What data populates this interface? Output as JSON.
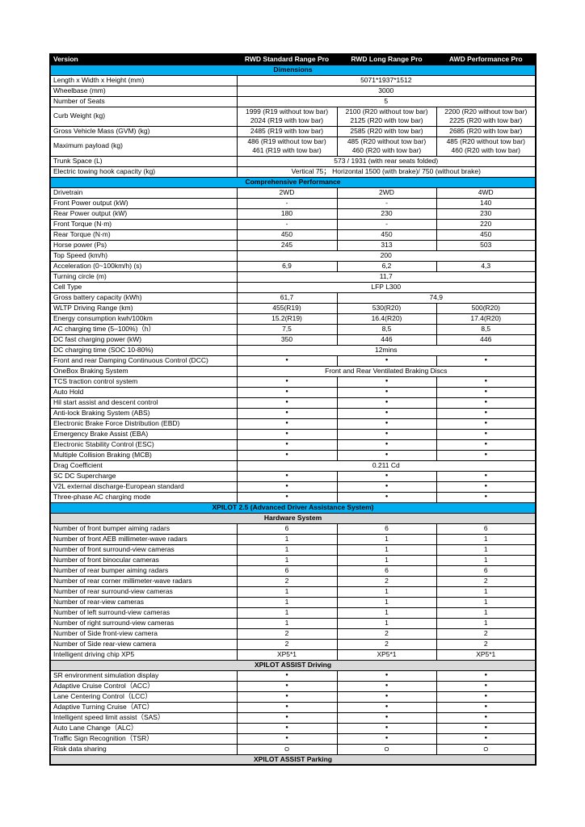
{
  "table": {
    "header": {
      "version": "Version",
      "columns": [
        "RWD Standard Range Pro",
        "RWD Long Range Pro",
        "AWD Performance Pro"
      ]
    },
    "symbols": {
      "included": "●",
      "optional": "O"
    },
    "colors": {
      "header_bg": "#000000",
      "header_text": "#FFFFFF",
      "section_blue": "#00AEEF",
      "section_gray": "#D9D9D9"
    },
    "rows": [
      {
        "t": "sec",
        "style": "blue",
        "label": "Dimensions"
      },
      {
        "t": "row",
        "label": "Length x Width x Height (mm)",
        "span": "all",
        "values": [
          "5071*1937*1512"
        ]
      },
      {
        "t": "row",
        "label": "Wheelbase (mm)",
        "span": "all",
        "values": [
          "3000"
        ]
      },
      {
        "t": "row",
        "label": "Number of Seats",
        "span": "all",
        "values": [
          "5"
        ]
      },
      {
        "t": "row",
        "label": "Curb Weight (kg)",
        "span": "each",
        "values": [
          [
            "1999 (R19 without tow bar)",
            "2024 (R19 with tow bar)"
          ],
          [
            "2100 (R20 without tow bar)",
            "2125 (R20 with tow bar)"
          ],
          [
            "2200 (R20 without tow bar)",
            "2225 (R20 with tow bar)"
          ]
        ]
      },
      {
        "t": "row",
        "label": "Gross Vehicle Mass (GVM) (kg)",
        "span": "each",
        "values": [
          "2485 (R19 with tow bar)",
          "2585 (R20 with tow bar)",
          "2685 (R20 with tow bar)"
        ]
      },
      {
        "t": "row",
        "label": "Maximum payload (kg)",
        "span": "each",
        "values": [
          [
            "486 (R19 without tow bar)",
            "461 (R19 with tow bar)"
          ],
          [
            "485 (R20 without tow bar)",
            "460 (R20 with tow bar)"
          ],
          [
            "485 (R20 without tow bar)",
            "460 (R20 with tow bar)"
          ]
        ]
      },
      {
        "t": "row",
        "label": "Trunk Space (L)",
        "span": "all",
        "values": [
          "573 / 1931 (with rear seats folded)"
        ]
      },
      {
        "t": "row",
        "label": "Electric towing hook capacity (kg)",
        "span": "all",
        "values": [
          "Vertical 75；  Horizontal 1500 (with brake)/ 750 (without brake)"
        ]
      },
      {
        "t": "sec",
        "style": "blue",
        "label": "Comprehensive Performance"
      },
      {
        "t": "row",
        "label": "Drivetrain",
        "span": "each",
        "values": [
          "2WD",
          "2WD",
          "4WD"
        ]
      },
      {
        "t": "row",
        "label": "Front Power output (kW)",
        "span": "each",
        "values": [
          "-",
          "-",
          "140"
        ]
      },
      {
        "t": "row",
        "label": "Rear Power output (kW)",
        "span": "each",
        "values": [
          "180",
          "230",
          "230"
        ]
      },
      {
        "t": "row",
        "label": "Front Torque (N·m)",
        "span": "each",
        "values": [
          "-",
          "-",
          "220"
        ]
      },
      {
        "t": "row",
        "label": "Rear Torque (N·m)",
        "span": "each",
        "values": [
          "450",
          "450",
          "450"
        ]
      },
      {
        "t": "row",
        "label": "Horse power (Ps)",
        "span": "each",
        "values": [
          "245",
          "313",
          "503"
        ]
      },
      {
        "t": "row",
        "label": "Top Speed (km/h)",
        "span": "all",
        "values": [
          "200"
        ]
      },
      {
        "t": "row",
        "label": "Acceleration (0~100km/h) (s)",
        "span": "each",
        "values": [
          "6,9",
          "6,2",
          "4,3"
        ]
      },
      {
        "t": "row",
        "label": "Turning circle (m)",
        "span": "all",
        "values": [
          "11,7"
        ]
      },
      {
        "t": "row",
        "label": "Cell Type",
        "span": "all",
        "values": [
          "LFP L300"
        ]
      },
      {
        "t": "row",
        "label": "Gross battery capacity (kWh)",
        "span": "1+2",
        "values": [
          "61,7",
          "74,9"
        ]
      },
      {
        "t": "row",
        "label": "WLTP Driving Range (km)",
        "span": "each",
        "values": [
          "455(R19)",
          "530(R20)",
          "500(R20)"
        ]
      },
      {
        "t": "row",
        "label": "Energy consumption kwh/100km",
        "span": "each",
        "values": [
          "15.2(R19)",
          "16.4(R20)",
          "17.4(R20)"
        ]
      },
      {
        "t": "row",
        "label": "AC charging time (5–100%)（h）",
        "span": "each",
        "values": [
          "7,5",
          "8,5",
          "8,5"
        ]
      },
      {
        "t": "row",
        "label": "DC fast charging power (kW)",
        "span": "each",
        "values": [
          "350",
          "446",
          "446"
        ]
      },
      {
        "t": "row",
        "label": "DC charging time (SOC 10-80%)",
        "span": "all",
        "values": [
          "12mins"
        ]
      },
      {
        "t": "row",
        "label": "Front and rear Damping Continuous Control (DCC)",
        "span": "each",
        "values": [
          "●",
          "●",
          "●"
        ]
      },
      {
        "t": "row",
        "label": "OneBox Braking System",
        "span": "all",
        "values": [
          "Front and Rear Ventilated Braking Discs"
        ]
      },
      {
        "t": "row",
        "label": "TCS traction control system",
        "span": "each",
        "values": [
          "●",
          "●",
          "●"
        ]
      },
      {
        "t": "row",
        "label": "Auto Hold",
        "span": "each",
        "values": [
          "●",
          "●",
          "●"
        ]
      },
      {
        "t": "row",
        "label": "Hil start assist and descent control",
        "span": "each",
        "values": [
          "●",
          "●",
          "●"
        ]
      },
      {
        "t": "row",
        "label": "Anti-lock Braking System (ABS)",
        "span": "each",
        "values": [
          "●",
          "●",
          "●"
        ]
      },
      {
        "t": "row",
        "label": "Electronic Brake Force Distribution (EBD)",
        "span": "each",
        "values": [
          "●",
          "●",
          "●"
        ]
      },
      {
        "t": "row",
        "label": "Emergency Brake Assist (EBA)",
        "span": "each",
        "values": [
          "●",
          "●",
          "●"
        ]
      },
      {
        "t": "row",
        "label": "Electronic Stability Control (ESC)",
        "span": "each",
        "values": [
          "●",
          "●",
          "●"
        ]
      },
      {
        "t": "row",
        "label": "Multiple Collision Braking (MCB)",
        "span": "each",
        "values": [
          "●",
          "●",
          "●"
        ]
      },
      {
        "t": "row",
        "label": "Drag Coefficient",
        "span": "all",
        "values": [
          "0.211 Cd"
        ]
      },
      {
        "t": "row",
        "label": "SC DC Supercharge",
        "span": "each",
        "values": [
          "●",
          "●",
          "●"
        ]
      },
      {
        "t": "row",
        "label": "V2L external discharge-European standard",
        "span": "each",
        "values": [
          "●",
          "●",
          "●"
        ]
      },
      {
        "t": "row",
        "label": "Three-phase AC charging mode",
        "span": "each",
        "values": [
          "●",
          "●",
          "●"
        ]
      },
      {
        "t": "sec",
        "style": "blue",
        "label": "XPILOT 2.5 (Advanced Driver Assistance System)"
      },
      {
        "t": "sec",
        "style": "gray",
        "label": "Hardware System"
      },
      {
        "t": "row",
        "label": "Number of front bumper aiming radars",
        "span": "each",
        "values": [
          "6",
          "6",
          "6"
        ]
      },
      {
        "t": "row",
        "label": "Number of front AEB millimeter-wave radars",
        "span": "each",
        "values": [
          "1",
          "1",
          "1"
        ]
      },
      {
        "t": "row",
        "label": "Number of front surround-view cameras",
        "span": "each",
        "values": [
          "1",
          "1",
          "1"
        ]
      },
      {
        "t": "row",
        "label": "Number of front binocular cameras",
        "span": "each",
        "values": [
          "1",
          "1",
          "1"
        ]
      },
      {
        "t": "row",
        "label": "Number of rear bumper aiming radars",
        "span": "each",
        "values": [
          "6",
          "6",
          "6"
        ]
      },
      {
        "t": "row",
        "label": "Number of rear corner millimeter-wave radars",
        "span": "each",
        "values": [
          "2",
          "2",
          "2"
        ]
      },
      {
        "t": "row",
        "label": "Number of rear surround-view cameras",
        "span": "each",
        "values": [
          "1",
          "1",
          "1"
        ]
      },
      {
        "t": "row",
        "label": "Number of rear-view cameras",
        "span": "each",
        "values": [
          "1",
          "1",
          "1"
        ]
      },
      {
        "t": "row",
        "label": "Number of left surround-view cameras",
        "span": "each",
        "values": [
          "1",
          "1",
          "1"
        ]
      },
      {
        "t": "row",
        "label": "Number of right surround-view cameras",
        "span": "each",
        "values": [
          "1",
          "1",
          "1"
        ]
      },
      {
        "t": "row",
        "label": "Number of Side front-view camera",
        "span": "each",
        "values": [
          "2",
          "2",
          "2"
        ]
      },
      {
        "t": "row",
        "label": "Number of Side rear-view camera",
        "span": "each",
        "values": [
          "2",
          "2",
          "2"
        ]
      },
      {
        "t": "row",
        "label": "Intelligent driving chip XP5",
        "span": "each",
        "values": [
          "XP5*1",
          "XP5*1",
          "XP5*1"
        ]
      },
      {
        "t": "sec",
        "style": "gray",
        "label": "XPILOT ASSIST Driving"
      },
      {
        "t": "row",
        "label": "SR environment simulation display",
        "span": "each",
        "values": [
          "●",
          "●",
          "●"
        ]
      },
      {
        "t": "row",
        "label": "Adaptive Cruise Control（ACC）",
        "span": "each",
        "values": [
          "●",
          "●",
          "●"
        ]
      },
      {
        "t": "row",
        "label": "Lane Centering Control（LCC）",
        "span": "each",
        "values": [
          "●",
          "●",
          "●"
        ]
      },
      {
        "t": "row",
        "label": "Adaptive Turning Cruise（ATC）",
        "span": "each",
        "values": [
          "●",
          "●",
          "●"
        ]
      },
      {
        "t": "row",
        "label": "Intelligent speed limit assist（SAS）",
        "span": "each",
        "values": [
          "●",
          "●",
          "●"
        ]
      },
      {
        "t": "row",
        "label": "Auto Lane Change（ALC）",
        "span": "each",
        "values": [
          "●",
          "●",
          "●"
        ]
      },
      {
        "t": "row",
        "label": "Traffic Sign Recognition（TSR）",
        "span": "each",
        "values": [
          "●",
          "●",
          "●"
        ]
      },
      {
        "t": "row",
        "label": "Risk data sharing",
        "span": "each",
        "values": [
          "O",
          "O",
          "O"
        ]
      },
      {
        "t": "sec",
        "style": "gray",
        "label": "XPILOT ASSIST Parking"
      }
    ]
  }
}
